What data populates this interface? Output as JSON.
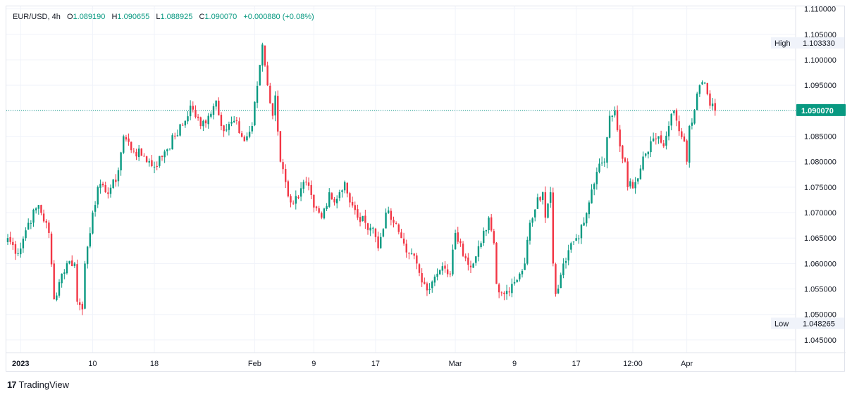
{
  "header": {
    "symbol": "EUR/USD",
    "interval": "4h",
    "open_label": "O",
    "open": "1.089190",
    "high_label": "H",
    "high": "1.090655",
    "low_label": "L",
    "low": "1.088925",
    "close_label": "C",
    "close": "1.090070",
    "change": "+0.000880 (+0.08%)"
  },
  "brand": {
    "name": "TradingView",
    "logo_text": "17"
  },
  "colors": {
    "up": "#089981",
    "down": "#f23645",
    "grid": "#f0f3fa",
    "axis_text": "#131722",
    "price_line": "#089981"
  },
  "chart_data": {
    "type": "candlestick",
    "title": "",
    "ylim": [
      1.0425,
      1.1105
    ],
    "y_ticks": [
      "1.110000",
      "1.105000",
      "1.100000",
      "1.095000",
      "1.090000",
      "1.085000",
      "1.080000",
      "1.075000",
      "1.070000",
      "1.065000",
      "1.060000",
      "1.055000",
      "1.050000",
      "1.045000"
    ],
    "x_ticks": [
      {
        "label": "2023",
        "bar": 5,
        "bold": true
      },
      {
        "label": "10",
        "bar": 33
      },
      {
        "label": "18",
        "bar": 57
      },
      {
        "label": "Feb",
        "bar": 96
      },
      {
        "label": "9",
        "bar": 119
      },
      {
        "label": "17",
        "bar": 143
      },
      {
        "label": "Mar",
        "bar": 174
      },
      {
        "label": "9",
        "bar": 197
      },
      {
        "label": "17",
        "bar": 221
      },
      {
        "label": "12:00",
        "bar": 243
      },
      {
        "label": "Apr",
        "bar": 264
      }
    ],
    "last_price": "1.090070",
    "high_marker": {
      "label": "High",
      "value": "1.103330"
    },
    "low_marker": {
      "label": "Low",
      "value": "1.048265"
    },
    "anchors": [
      [
        0,
        1.065
      ],
      [
        4,
        1.062
      ],
      [
        8,
        1.068
      ],
      [
        12,
        1.0715
      ],
      [
        16,
        1.066
      ],
      [
        18,
        1.053
      ],
      [
        21,
        1.058
      ],
      [
        24,
        1.0605
      ],
      [
        26,
        1.06
      ],
      [
        27,
        1.0525
      ],
      [
        29,
        1.051
      ],
      [
        30,
        1.06
      ],
      [
        33,
        1.07
      ],
      [
        35,
        1.075
      ],
      [
        38,
        1.074
      ],
      [
        42,
        1.076
      ],
      [
        45,
        1.085
      ],
      [
        49,
        1.082
      ],
      [
        53,
        1.081
      ],
      [
        57,
        1.079
      ],
      [
        61,
        1.082
      ],
      [
        65,
        1.085
      ],
      [
        69,
        1.088
      ],
      [
        71,
        1.091
      ],
      [
        75,
        1.087
      ],
      [
        78,
        1.089
      ],
      [
        81,
        1.092
      ],
      [
        84,
        1.086
      ],
      [
        88,
        1.088
      ],
      [
        92,
        1.084
      ],
      [
        95,
        1.087
      ],
      [
        98,
        1.099
      ],
      [
        99,
        1.103
      ],
      [
        101,
        1.095
      ],
      [
        103,
        1.089
      ],
      [
        104,
        1.093
      ],
      [
        106,
        1.08
      ],
      [
        108,
        1.076
      ],
      [
        110,
        1.072
      ],
      [
        113,
        1.073
      ],
      [
        116,
        1.076
      ],
      [
        119,
        1.071
      ],
      [
        122,
        1.069
      ],
      [
        125,
        1.074
      ],
      [
        127,
        1.072
      ],
      [
        129,
        1.074
      ],
      [
        131,
        1.076
      ],
      [
        133,
        1.072
      ],
      [
        136,
        1.069
      ],
      [
        139,
        1.068
      ],
      [
        142,
        1.067
      ],
      [
        144,
        1.063
      ],
      [
        147,
        1.07
      ],
      [
        150,
        1.068
      ],
      [
        153,
        1.065
      ],
      [
        156,
        1.062
      ],
      [
        159,
        1.06
      ],
      [
        162,
        1.056
      ],
      [
        164,
        1.055
      ],
      [
        167,
        1.058
      ],
      [
        170,
        1.059
      ],
      [
        172,
        1.058
      ],
      [
        174,
        1.066
      ],
      [
        176,
        1.064
      ],
      [
        178,
        1.061
      ],
      [
        181,
        1.06
      ],
      [
        184,
        1.064
      ],
      [
        187,
        1.069
      ],
      [
        189,
        1.064
      ],
      [
        190,
        1.056
      ],
      [
        193,
        1.054
      ],
      [
        196,
        1.056
      ],
      [
        199,
        1.058
      ],
      [
        201,
        1.06
      ],
      [
        203,
        1.068
      ],
      [
        206,
        1.073
      ],
      [
        208,
        1.074
      ],
      [
        209,
        1.069
      ],
      [
        211,
        1.074
      ],
      [
        212,
        1.06
      ],
      [
        213,
        1.054
      ],
      [
        216,
        1.06
      ],
      [
        219,
        1.064
      ],
      [
        221,
        1.065
      ],
      [
        224,
        1.068
      ],
      [
        226,
        1.072
      ],
      [
        229,
        1.078
      ],
      [
        232,
        1.08
      ],
      [
        234,
        1.089
      ],
      [
        236,
        1.09
      ],
      [
        238,
        1.083
      ],
      [
        240,
        1.08
      ],
      [
        241,
        1.075
      ],
      [
        244,
        1.076
      ],
      [
        247,
        1.081
      ],
      [
        250,
        1.084
      ],
      [
        253,
        1.085
      ],
      [
        255,
        1.083
      ],
      [
        257,
        1.087
      ],
      [
        259,
        1.09
      ],
      [
        261,
        1.086
      ],
      [
        263,
        1.084
      ],
      [
        264,
        1.08
      ],
      [
        265,
        1.087
      ],
      [
        267,
        1.09
      ],
      [
        269,
        1.095
      ],
      [
        271,
        1.0955
      ],
      [
        273,
        1.091
      ],
      [
        275,
        1.09
      ]
    ]
  }
}
